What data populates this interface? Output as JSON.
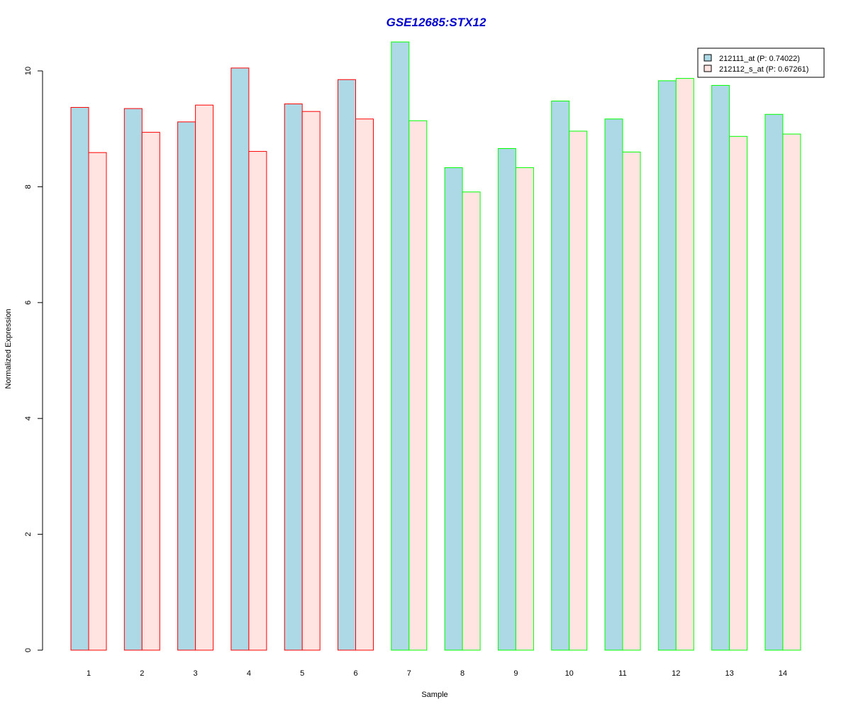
{
  "chart_data": {
    "type": "bar",
    "title": "GSE12685:STX12",
    "xlabel": "Sample",
    "ylabel": "Normalized Expression",
    "categories": [
      "1",
      "2",
      "3",
      "4",
      "5",
      "6",
      "7",
      "8",
      "9",
      "10",
      "11",
      "12",
      "13",
      "14"
    ],
    "series": [
      {
        "name": "212111_at (P: 0.74022)",
        "fill": "#add8e6",
        "values": [
          9.37,
          9.35,
          9.12,
          10.05,
          9.43,
          9.85,
          10.5,
          8.33,
          8.66,
          9.48,
          9.17,
          9.83,
          9.75,
          9.25
        ]
      },
      {
        "name": "212112_s_at (P: 0.67261)",
        "fill": "#ffe4e1",
        "values": [
          8.59,
          8.94,
          9.41,
          8.61,
          9.3,
          9.17,
          9.14,
          7.91,
          8.33,
          8.96,
          8.6,
          9.87,
          8.87,
          8.91
        ]
      }
    ],
    "group_border_colors": [
      "#ff0000",
      "#ff0000",
      "#ff0000",
      "#ff0000",
      "#ff0000",
      "#ff0000",
      "#00ff00",
      "#00ff00",
      "#00ff00",
      "#00ff00",
      "#00ff00",
      "#00ff00",
      "#00ff00",
      "#00ff00"
    ],
    "y_ticks": [
      0,
      2,
      4,
      6,
      8,
      10
    ],
    "ylim": [
      0,
      10.5
    ],
    "grid": false,
    "legend_position": "top-right",
    "title_color": "#0000cd"
  }
}
